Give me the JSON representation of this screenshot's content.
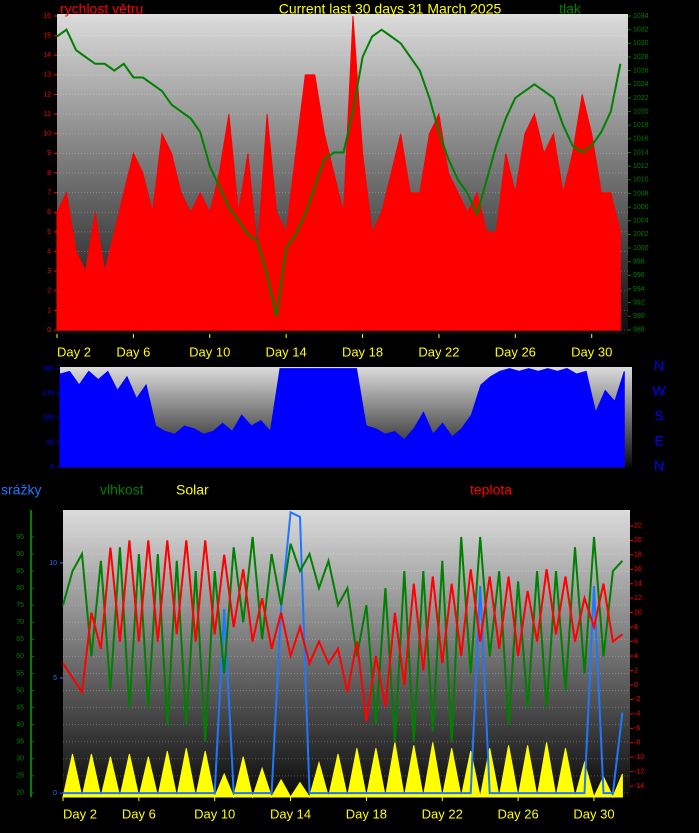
{
  "chart_data": [
    {
      "type": "line",
      "title": "Current last 30 days 31 March 2025",
      "x": [
        2,
        2.5,
        3,
        3.5,
        4,
        4.5,
        5,
        5.5,
        6,
        6.5,
        7,
        7.5,
        8,
        8.5,
        9,
        9.5,
        10,
        10.5,
        11,
        11.5,
        12,
        12.5,
        13,
        13.5,
        14,
        14.5,
        15,
        15.5,
        16,
        16.5,
        17,
        17.5,
        18,
        18.5,
        19,
        19.5,
        20,
        20.5,
        21,
        21.5,
        22,
        22.5,
        23,
        23.5,
        24,
        24.5,
        25,
        25.5,
        26,
        26.5,
        27,
        27.5,
        28,
        28.5,
        29,
        29.5,
        30,
        30.5,
        31,
        31.5
      ],
      "xlim": [
        2,
        31.9
      ],
      "xticks": [
        {
          "value": 2,
          "label": "Day 2"
        },
        {
          "value": 6,
          "label": "Day 6"
        },
        {
          "value": 10,
          "label": "Day 10"
        },
        {
          "value": 14,
          "label": "Day 14"
        },
        {
          "value": 18,
          "label": "Day 18"
        },
        {
          "value": 22,
          "label": "Day 22"
        },
        {
          "value": 26,
          "label": "Day 26"
        },
        {
          "value": 30,
          "label": "Day 30"
        }
      ],
      "ylim": [
        -0.2,
        16.1
      ],
      "yticks": [
        0,
        1,
        2,
        3,
        4,
        5,
        6,
        7,
        8,
        9,
        10,
        11,
        12,
        13,
        14,
        15,
        16
      ],
      "y2lim": [
        987.4,
        1034.3
      ],
      "y2ticks": [
        988,
        990,
        992,
        994,
        996,
        998,
        1000,
        1002,
        1004,
        1006,
        1008,
        1010,
        1012,
        1014,
        1016,
        1018,
        1020,
        1022,
        1024,
        1026,
        1028,
        1030,
        1032,
        1034
      ],
      "grid": true,
      "series": [
        {
          "name": "rychlost větru",
          "color": "#ff0000",
          "style": "area",
          "axis": "y",
          "values": [
            6,
            7,
            4,
            3,
            6,
            3,
            5,
            7,
            9,
            8,
            6,
            10,
            9,
            7,
            6,
            7,
            6,
            8,
            11,
            6,
            9,
            4,
            11,
            6,
            5,
            9,
            13,
            13,
            10,
            8,
            6,
            16,
            9,
            5,
            6,
            8,
            10,
            7,
            7,
            10,
            11,
            8,
            7,
            6,
            7,
            5,
            5,
            9,
            7,
            10,
            11,
            9,
            10,
            7,
            9,
            12,
            10,
            7,
            7,
            5
          ]
        },
        {
          "name": "tlak",
          "color": "#008000",
          "style": "line",
          "axis": "y2",
          "values": [
            1031,
            1032,
            1029,
            1028,
            1027,
            1027,
            1026,
            1027,
            1025,
            1025,
            1024,
            1023,
            1021,
            1020,
            1019,
            1017,
            1012,
            1009,
            1006,
            1004,
            1002,
            1001,
            996,
            990,
            1000,
            1002,
            1005,
            1009,
            1013,
            1014,
            1014,
            1020,
            1028,
            1031,
            1032,
            1031,
            1030,
            1028,
            1026,
            1022,
            1017,
            1013,
            1010,
            1008,
            1005,
            1010,
            1015,
            1019,
            1022,
            1023,
            1024,
            1023,
            1022,
            1018,
            1015,
            1014,
            1015,
            1017,
            1020,
            1027
          ]
        }
      ]
    },
    {
      "type": "line",
      "x": [
        2,
        2.5,
        3,
        3.5,
        4,
        4.5,
        5,
        5.5,
        6,
        6.5,
        7,
        7.5,
        8,
        8.5,
        9,
        9.5,
        10,
        10.5,
        11,
        11.5,
        12,
        12.5,
        13,
        13.5,
        14,
        14.5,
        15,
        15.5,
        16,
        16.5,
        17,
        17.5,
        18,
        18.5,
        19,
        19.5,
        20,
        20.5,
        21,
        21.5,
        22,
        22.5,
        23,
        23.5,
        24,
        24.5,
        25,
        25.5,
        26,
        26.5,
        27,
        27.5,
        28,
        28.5,
        29,
        29.5,
        30,
        30.5,
        31,
        31.5
      ],
      "xlim": [
        2,
        31.9
      ],
      "ylim": [
        0,
        366
      ],
      "yticks": [
        0,
        90,
        180,
        270,
        360
      ],
      "compass": [
        "N",
        "W",
        "S",
        "E",
        "N"
      ],
      "compass_color": "#0000ff",
      "series": [
        {
          "color": "#0000ff",
          "style": "area",
          "axis": "y",
          "values": [
            340,
            350,
            300,
            350,
            320,
            350,
            280,
            330,
            250,
            300,
            150,
            130,
            120,
            150,
            140,
            120,
            130,
            160,
            130,
            190,
            150,
            170,
            130,
            360,
            360,
            360,
            360,
            360,
            360,
            360,
            360,
            360,
            150,
            140,
            120,
            130,
            100,
            140,
            200,
            120,
            160,
            110,
            140,
            190,
            300,
            330,
            350,
            360,
            350,
            360,
            350,
            360,
            350,
            360,
            340,
            350,
            200,
            280,
            240,
            350
          ]
        }
      ]
    },
    {
      "type": "line",
      "x": [
        2,
        2.5,
        3,
        3.5,
        4,
        4.5,
        5,
        5.5,
        6,
        6.5,
        7,
        7.5,
        8,
        8.5,
        9,
        9.5,
        10,
        10.5,
        11,
        11.5,
        12,
        12.5,
        13,
        13.5,
        14,
        14.5,
        15,
        15.5,
        16,
        16.5,
        17,
        17.5,
        18,
        18.5,
        19,
        19.5,
        20,
        20.5,
        21,
        21.5,
        22,
        22.5,
        23,
        23.5,
        24,
        24.5,
        25,
        25.5,
        26,
        26.5,
        27,
        27.5,
        28,
        28.5,
        29,
        29.5,
        30,
        30.5,
        31,
        31.5
      ],
      "xlim": [
        2,
        31.9
      ],
      "xticks": [
        {
          "value": 2,
          "label": "Day 2"
        },
        {
          "value": 6,
          "label": "Day 6"
        },
        {
          "value": 10,
          "label": "Day 10"
        },
        {
          "value": 14,
          "label": "Day 14"
        },
        {
          "value": 18,
          "label": "Day 18"
        },
        {
          "value": 22,
          "label": "Day 22"
        },
        {
          "value": 26,
          "label": "Day 26"
        },
        {
          "value": 30,
          "label": "Day 30"
        }
      ],
      "ylim": [
        18.8,
        102.9
      ],
      "yticks": [
        20,
        25,
        30,
        35,
        40,
        45,
        50,
        55,
        60,
        65,
        70,
        75,
        80,
        85,
        90,
        95
      ],
      "y2lim": [
        -15.5,
        24.2
      ],
      "y2ticks": [
        -14,
        -12,
        -10,
        -8,
        -6,
        -4,
        -2,
        0,
        2,
        4,
        6,
        8,
        10,
        12,
        14,
        16,
        18,
        20,
        22
      ],
      "y3lim": [
        -0.17,
        12.3
      ],
      "y3ticks": [
        0,
        5,
        10
      ],
      "y4lim": [
        0,
        100
      ],
      "grid": true,
      "series": [
        {
          "name": "srážky",
          "color": "#1e78ff",
          "style": "line",
          "axis": "y3",
          "values": [
            0,
            0,
            0,
            0,
            0,
            0,
            0,
            0,
            0,
            0,
            0,
            0,
            0,
            0,
            0,
            0,
            0,
            8,
            0,
            0,
            0,
            0,
            0,
            8,
            12.2,
            12,
            0,
            0,
            0,
            0,
            0,
            0,
            0,
            0,
            0,
            0,
            0,
            0,
            0,
            0,
            0,
            0,
            0,
            0,
            9,
            0,
            0,
            0,
            0,
            0,
            0,
            0,
            0,
            0,
            0,
            0,
            9,
            0,
            0,
            3.5
          ]
        },
        {
          "name": "vlhkost",
          "color": "#008000",
          "style": "line",
          "axis": "y",
          "values": [
            75,
            85,
            90,
            60,
            88,
            50,
            92,
            45,
            90,
            45,
            90,
            40,
            88,
            40,
            85,
            35,
            85,
            55,
            92,
            70,
            95,
            65,
            90,
            75,
            93,
            85,
            90,
            80,
            88,
            75,
            80,
            60,
            75,
            40,
            80,
            35,
            85,
            35,
            85,
            38,
            88,
            35,
            95,
            55,
            95,
            60,
            85,
            40,
            82,
            45,
            85,
            45,
            85,
            50,
            92,
            55,
            95,
            60,
            85,
            88
          ]
        },
        {
          "name": "Solar",
          "color": "#ffff00",
          "style": "area",
          "axis": "y4",
          "values": [
            0,
            15,
            0,
            15,
            0,
            14,
            0,
            15,
            0,
            14,
            0,
            16,
            0,
            17,
            0,
            16,
            0,
            8,
            0,
            14,
            0,
            10,
            0,
            6,
            0,
            5,
            0,
            12,
            0,
            15,
            0,
            17,
            0,
            17,
            0,
            19,
            0,
            18,
            0,
            19,
            0,
            17,
            0,
            16,
            0,
            17,
            0,
            18,
            0,
            18,
            0,
            19,
            0,
            17,
            0,
            12,
            0,
            7,
            0,
            8
          ]
        },
        {
          "name": "teplota",
          "color": "#ff0000",
          "style": "line",
          "axis": "y2",
          "values": [
            3,
            1,
            -1,
            10,
            5,
            19,
            6,
            20,
            6,
            20,
            6,
            20,
            7,
            20,
            6,
            20,
            7,
            18,
            8,
            16,
            6,
            12,
            5,
            10,
            4,
            8,
            3,
            6,
            3,
            5,
            -1,
            6,
            -5,
            4,
            -3,
            10,
            0,
            14,
            2,
            15,
            3,
            14,
            4,
            16,
            6,
            15,
            5,
            15,
            4,
            13,
            6,
            16,
            7,
            15,
            6,
            12,
            8,
            14,
            6,
            7
          ]
        }
      ]
    }
  ]
}
